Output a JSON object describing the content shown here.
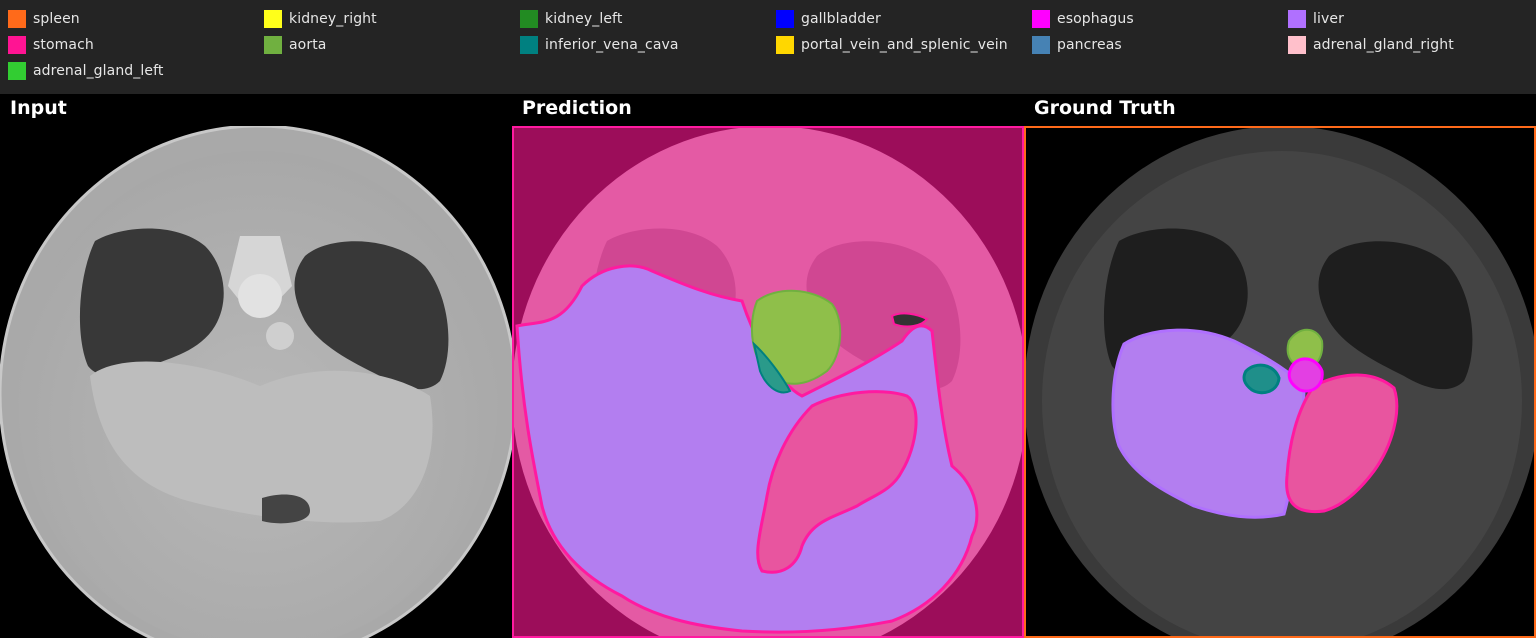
{
  "legend": {
    "items": [
      {
        "label": "spleen",
        "color": "#ff6a1a"
      },
      {
        "label": "kidney_right",
        "color": "#ffff1a"
      },
      {
        "label": "kidney_left",
        "color": "#228b22"
      },
      {
        "label": "gallbladder",
        "color": "#0000ff"
      },
      {
        "label": "esophagus",
        "color": "#ff00ff"
      },
      {
        "label": "liver",
        "color": "#b070ff"
      },
      {
        "label": "stomach",
        "color": "#ff1493"
      },
      {
        "label": "aorta",
        "color": "#70b040"
      },
      {
        "label": "inferior_vena_cava",
        "color": "#008080"
      },
      {
        "label": "portal_vein_and_splenic_vein",
        "color": "#ffd700"
      },
      {
        "label": "pancreas",
        "color": "#4682b4"
      },
      {
        "label": "adrenal_gland_right",
        "color": "#ffc0cb"
      },
      {
        "label": "adrenal_gland_left",
        "color": "#32cd32"
      }
    ]
  },
  "panels": {
    "input": {
      "title": "Input"
    },
    "prediction": {
      "title": "Prediction",
      "frame_color": "#ff1aa0"
    },
    "ground_truth": {
      "title": "Ground Truth",
      "frame_color": "#ff6a1a"
    }
  }
}
